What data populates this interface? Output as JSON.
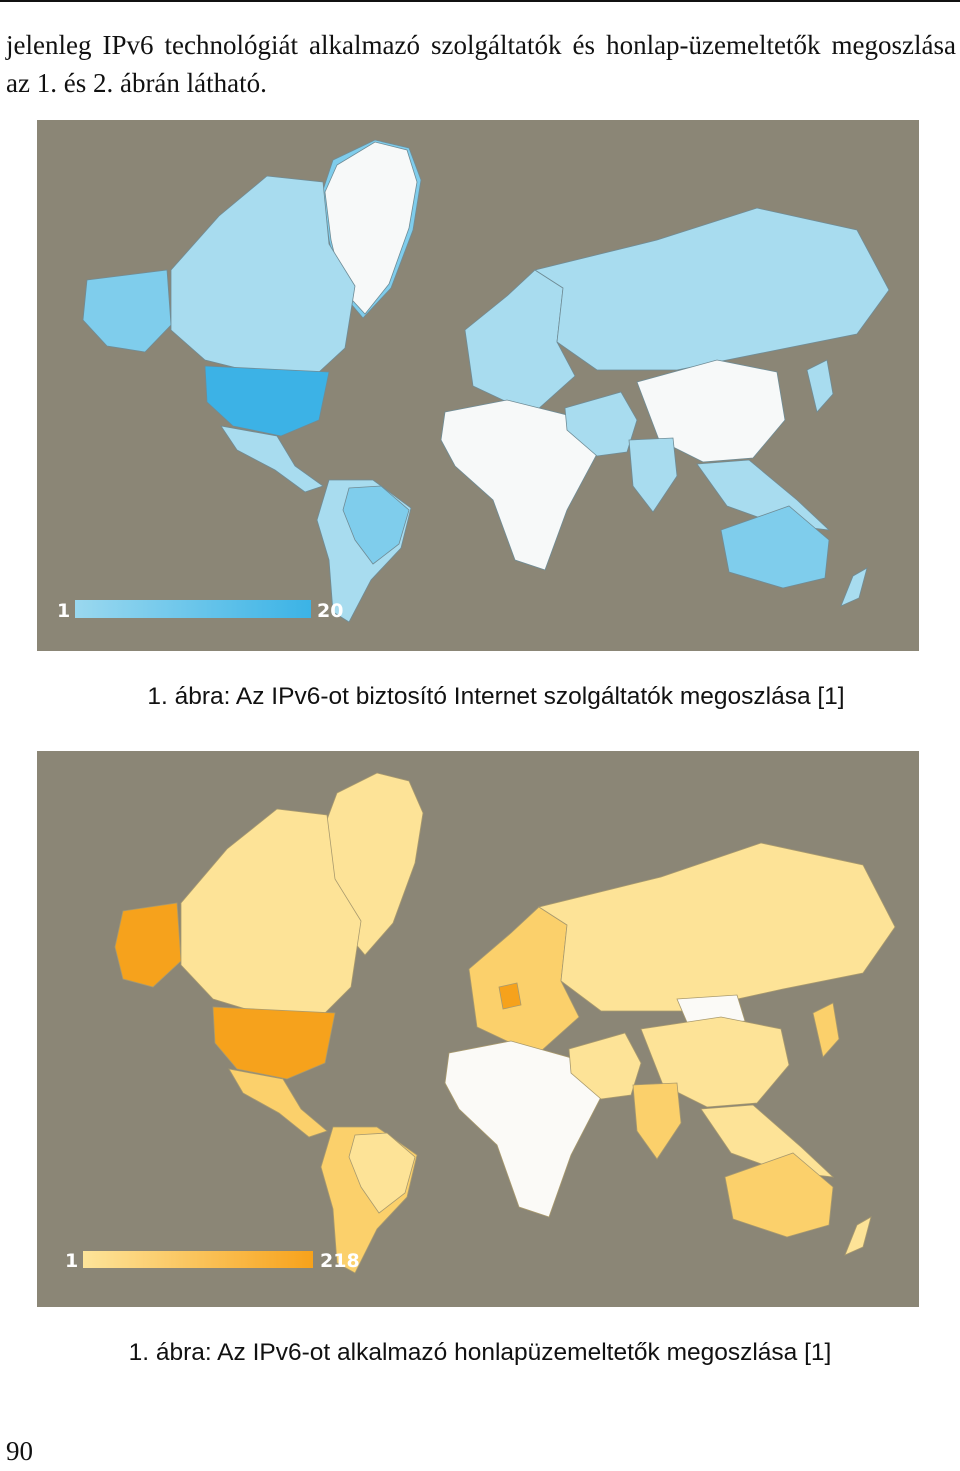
{
  "document": {
    "intro_text": "jelenleg IPv6 technológiát alkalmazó szolgáltatók és honlap-üzemeltetők megoszlása az 1. és 2. ábrán látható.",
    "page_number": "90"
  },
  "figures": [
    {
      "caption": "1. ábra: Az IPv6-ot biztosító Internet szolgáltatók megoszlása [1]",
      "legend": {
        "min_label": "1",
        "max_label": "20",
        "min_color": "#9ad8ef",
        "max_color": "#3bb3e6"
      },
      "colors": {
        "ocean": "#8b8676",
        "none": "#f7f9f9",
        "low": "#a8dcef",
        "mid": "#7fcdec",
        "high": "#3cb2e6",
        "border": "#6f8c96"
      }
    },
    {
      "caption": "1. ábra: Az IPv6-ot alkalmazó honlapüzemeltetők megoszlása [1]",
      "legend": {
        "min_label": "1",
        "max_label": "218",
        "min_color": "#fde49a",
        "max_color": "#f7a21b"
      },
      "colors": {
        "ocean": "#8b8676",
        "none": "#fbfaf7",
        "low": "#fde397",
        "mid": "#fbd06b",
        "high": "#f6a21c",
        "border": "#a99a6e"
      }
    }
  ]
}
